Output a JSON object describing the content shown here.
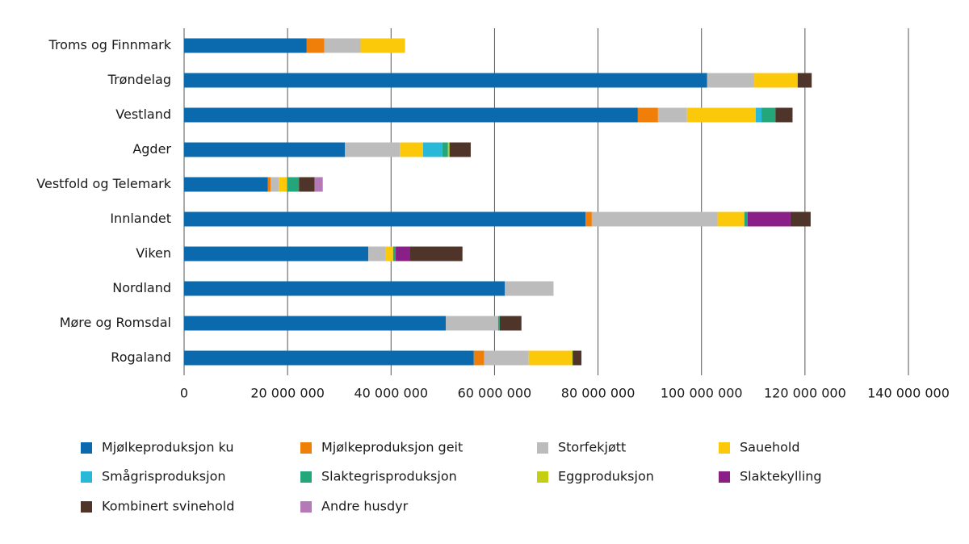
{
  "chart_data": {
    "type": "stacked-barh",
    "categories": [
      "Troms og Finnmark",
      "Trøndelag",
      "Vestland",
      "Agder",
      "Vestfold og Telemark",
      "Innlandet",
      "Viken",
      "Nordland",
      "Møre og Romsdal",
      "Rogaland"
    ],
    "series": [
      {
        "name": "Mjølkeproduksjon ku",
        "color": "#0a6aad",
        "values": [
          23700000.0,
          101100000.0,
          87700000.0,
          31100000.0,
          16200000.0,
          77600000.0,
          35600000.0,
          62000000.0,
          50600000.0,
          56000000.0
        ]
      },
      {
        "name": "Mjølkeproduksjon geit",
        "color": "#f07f0a",
        "values": [
          3400000.0,
          0,
          3900000.0,
          0,
          500000.0,
          1200000.0,
          0,
          0,
          0,
          2000000.0
        ]
      },
      {
        "name": "Storfekjøtt",
        "color": "#bcbcbc",
        "values": [
          7000000.0,
          9100000.0,
          5600000.0,
          10600000.0,
          1600000.0,
          24300000.0,
          3400000.0,
          9400000.0,
          10100000.0,
          8600000.0
        ]
      },
      {
        "name": "Sauehold",
        "color": "#fcc80a",
        "values": [
          8600000.0,
          8400000.0,
          13300000.0,
          4500000.0,
          1600000.0,
          5200000.0,
          1400000.0,
          0,
          0,
          8300000.0
        ]
      },
      {
        "name": "Smågrisproduksjon",
        "color": "#2ab8d9",
        "values": [
          0,
          0,
          1100000.0,
          3700000.0,
          0,
          0,
          0,
          0,
          0,
          0
        ]
      },
      {
        "name": "Slaktegrisproduksjon",
        "color": "#22a67a",
        "values": [
          0,
          0,
          2700000.0,
          1100000.0,
          2300000.0,
          600000.0,
          500000.0,
          0,
          300000.0,
          0
        ]
      },
      {
        "name": "Eggproduksjon",
        "color": "#c2cf12",
        "values": [
          0,
          0,
          0,
          300000.0,
          0,
          0,
          0,
          0,
          0,
          200000.0
        ]
      },
      {
        "name": "Slaktekylling",
        "color": "#8a1f87",
        "values": [
          0,
          0,
          0,
          0,
          0,
          8300000.0,
          2800000.0,
          0,
          0,
          0
        ]
      },
      {
        "name": "Kombinert svinehold",
        "color": "#4f3529",
        "values": [
          0,
          2700000.0,
          3300000.0,
          4100000.0,
          3000000.0,
          3900000.0,
          10100000.0,
          0,
          4200000.0,
          1700000.0
        ]
      },
      {
        "name": "Andre husdyr",
        "color": "#b37ab7",
        "values": [
          0,
          0,
          0,
          0,
          1600000.0,
          0,
          0,
          0,
          0,
          0
        ]
      }
    ],
    "xlim": [
      0,
      140000000
    ],
    "xticks": [
      0,
      {
        "value": 20000000,
        "label": "20 000 000"
      },
      {
        "value": 40000000,
        "label": "40 000 000"
      },
      {
        "value": 60000000,
        "label": "60 000 000"
      },
      {
        "value": 80000000,
        "label": "80 000 000"
      },
      {
        "value": 100000000,
        "label": "100 000 000"
      },
      {
        "value": 120000000,
        "label": "120 000 000"
      },
      {
        "value": 140000000,
        "label": "140 000 000"
      }
    ],
    "grid": true
  }
}
